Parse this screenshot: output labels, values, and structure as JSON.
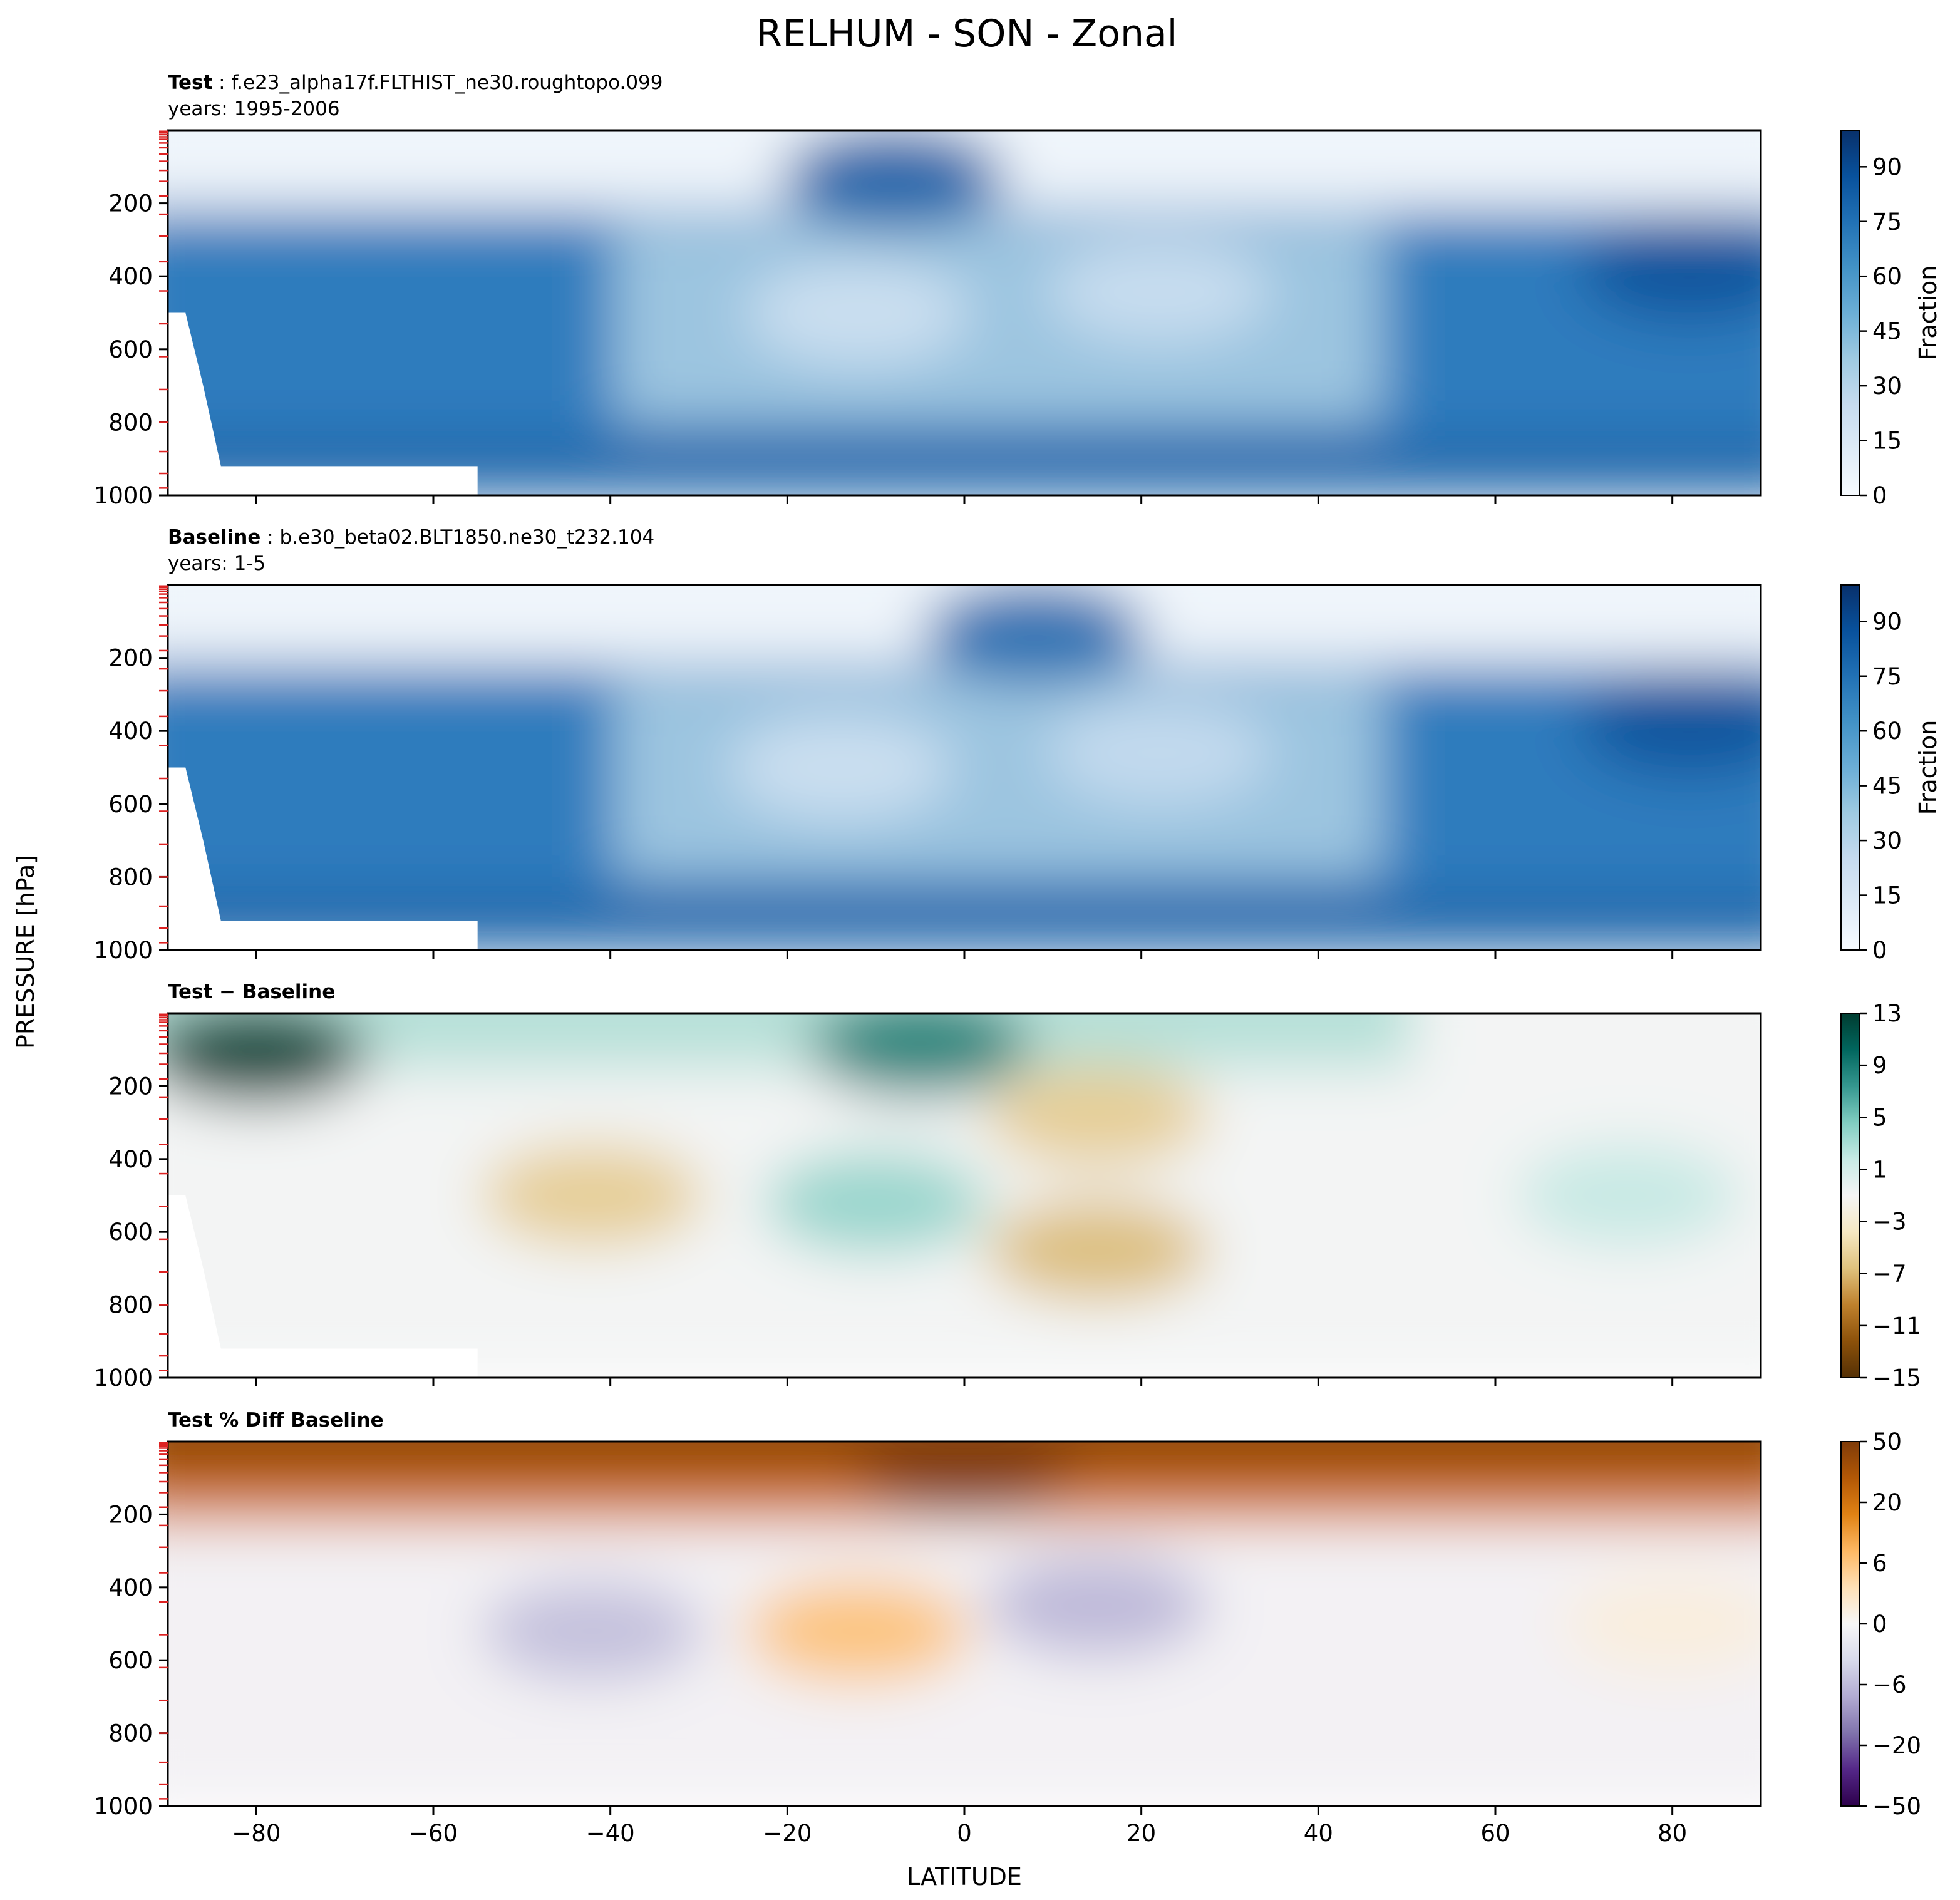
{
  "figure": {
    "title": "RELHUM - SON - Zonal",
    "ylabel": "PRESSURE [hPa]",
    "xlabel": "LATITUDE"
  },
  "chart_data": [
    {
      "type": "heatmap",
      "panel": "test",
      "case_label": "Test",
      "case_name": "f.e23_alpha17f.FLTHIST_ne30.roughtopo.099",
      "years": "years: 1995-2006",
      "xlabel": "LATITUDE",
      "ylabel": "PRESSURE [hPa]",
      "xlim": [
        -90,
        90
      ],
      "ylim": [
        1000,
        0
      ],
      "x_ticks": [
        -80,
        -60,
        -40,
        -20,
        0,
        20,
        40,
        60,
        80
      ],
      "y_ticks": [
        200,
        400,
        600,
        800,
        1000
      ],
      "colorbar": {
        "label": "Fraction",
        "ticks": [
          "0",
          "15",
          "30",
          "45",
          "60",
          "75",
          "90"
        ],
        "range": [
          0,
          100
        ],
        "colormap": "Blues"
      },
      "features": [
        {
          "lat": -12,
          "p": 500,
          "value": 20
        },
        {
          "lat": 22,
          "p": 440,
          "value": 22
        },
        {
          "lat": -8,
          "p": 130,
          "value": 85
        },
        {
          "lat": 82,
          "p": 380,
          "value": 88
        }
      ]
    },
    {
      "type": "heatmap",
      "panel": "baseline",
      "case_label": "Baseline",
      "case_name": "b.e30_beta02.BLT1850.ne30_t232.104",
      "years": "years: 1-5",
      "xlabel": "LATITUDE",
      "ylabel": "PRESSURE [hPa]",
      "xlim": [
        -90,
        90
      ],
      "ylim": [
        1000,
        0
      ],
      "x_ticks": [
        -80,
        -60,
        -40,
        -20,
        0,
        20,
        40,
        60,
        80
      ],
      "y_ticks": [
        200,
        400,
        600,
        800,
        1000
      ],
      "colorbar": {
        "label": "Fraction",
        "ticks": [
          "0",
          "15",
          "30",
          "45",
          "60",
          "75",
          "90"
        ],
        "range": [
          0,
          100
        ],
        "colormap": "Blues"
      },
      "features": [
        {
          "lat": -14,
          "p": 500,
          "value": 20
        },
        {
          "lat": 22,
          "p": 460,
          "value": 24
        },
        {
          "lat": 8,
          "p": 130,
          "value": 80
        },
        {
          "lat": 82,
          "p": 380,
          "value": 88
        }
      ]
    },
    {
      "type": "heatmap",
      "panel": "difference",
      "case_label": "Test − Baseline",
      "xlabel": "LATITUDE",
      "ylabel": "PRESSURE [hPa]",
      "xlim": [
        -90,
        90
      ],
      "ylim": [
        1000,
        0
      ],
      "x_ticks": [
        -80,
        -60,
        -40,
        -20,
        0,
        20,
        40,
        60,
        80
      ],
      "y_ticks": [
        200,
        400,
        600,
        800,
        1000
      ],
      "colorbar": {
        "ticks": [
          "13",
          "9",
          "5",
          "1",
          "−3",
          "−7",
          "−11",
          "−15"
        ],
        "range": [
          -15,
          13
        ],
        "colormap": "BrBG"
      },
      "features": [
        {
          "lat": -80,
          "p": 110,
          "value": 13
        },
        {
          "lat": -5,
          "p": 90,
          "value": 9
        },
        {
          "lat": -42,
          "p": 500,
          "value": -6
        },
        {
          "lat": -10,
          "p": 520,
          "value": 4
        },
        {
          "lat": 15,
          "p": 650,
          "value": -7
        },
        {
          "lat": 15,
          "p": 280,
          "value": -6
        },
        {
          "lat": 75,
          "p": 500,
          "value": 2
        }
      ]
    },
    {
      "type": "heatmap",
      "panel": "percent-difference",
      "case_label": "Test % Diff Baseline",
      "xlabel": "LATITUDE",
      "ylabel": "PRESSURE [hPa]",
      "xlim": [
        -90,
        90
      ],
      "ylim": [
        1000,
        0
      ],
      "x_ticks": [
        -80,
        -60,
        -40,
        -20,
        0,
        20,
        40,
        60,
        80
      ],
      "y_ticks": [
        200,
        400,
        600,
        800,
        1000
      ],
      "colorbar": {
        "ticks": [
          "50",
          "20",
          "6",
          "0",
          "−6",
          "−20",
          "−50"
        ],
        "range": [
          -60,
          60
        ],
        "colormap": "PuOr_r"
      },
      "features": [
        {
          "lat": 0,
          "p": 60,
          "value": 60
        },
        {
          "lat": -12,
          "p": 520,
          "value": 22
        },
        {
          "lat": -42,
          "p": 520,
          "value": -20
        },
        {
          "lat": 15,
          "p": 450,
          "value": -22
        },
        {
          "lat": 80,
          "p": 500,
          "value": 5
        }
      ]
    }
  ]
}
